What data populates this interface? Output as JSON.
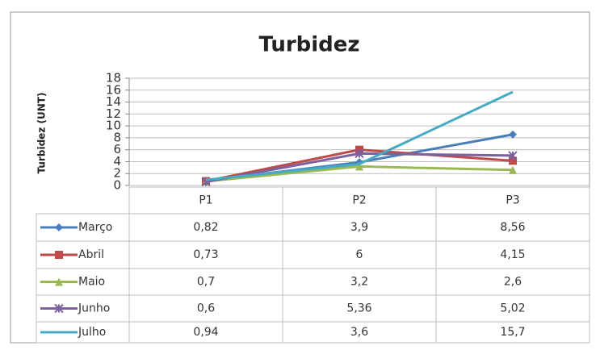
{
  "chart_data": {
    "type": "line",
    "title": "Turbidez",
    "y_label": "Turbidez (UNT)",
    "categories": [
      "P1",
      "P2",
      "P3"
    ],
    "series": [
      {
        "name": "Março",
        "color": "#4a7ebb",
        "marker": "diamond",
        "values": [
          0.82,
          3.9,
          8.56
        ],
        "value_labels": [
          "0,82",
          "3,9",
          "8,56"
        ]
      },
      {
        "name": "Abril",
        "color": "#be4b48",
        "marker": "square",
        "values": [
          0.73,
          6,
          4.15
        ],
        "value_labels": [
          "0,73",
          "6",
          "4,15"
        ]
      },
      {
        "name": "Maio",
        "color": "#98b954",
        "marker": "triangle",
        "values": [
          0.7,
          3.2,
          2.6
        ],
        "value_labels": [
          "0,7",
          "3,2",
          "2,6"
        ]
      },
      {
        "name": "Junho",
        "color": "#7d60a0",
        "marker": "star",
        "values": [
          0.6,
          5.36,
          5.02
        ],
        "value_labels": [
          "0,6",
          "5,36",
          "5,02"
        ]
      },
      {
        "name": "Julho",
        "color": "#46aac5",
        "marker": "none",
        "values": [
          0.94,
          3.6,
          15.7
        ],
        "value_labels": [
          "0,94",
          "3,6",
          "15,7"
        ]
      }
    ],
    "ylim": [
      0,
      18
    ],
    "yticks": [
      0,
      2,
      4,
      6,
      8,
      10,
      12,
      14,
      16,
      18
    ],
    "grid": true
  }
}
